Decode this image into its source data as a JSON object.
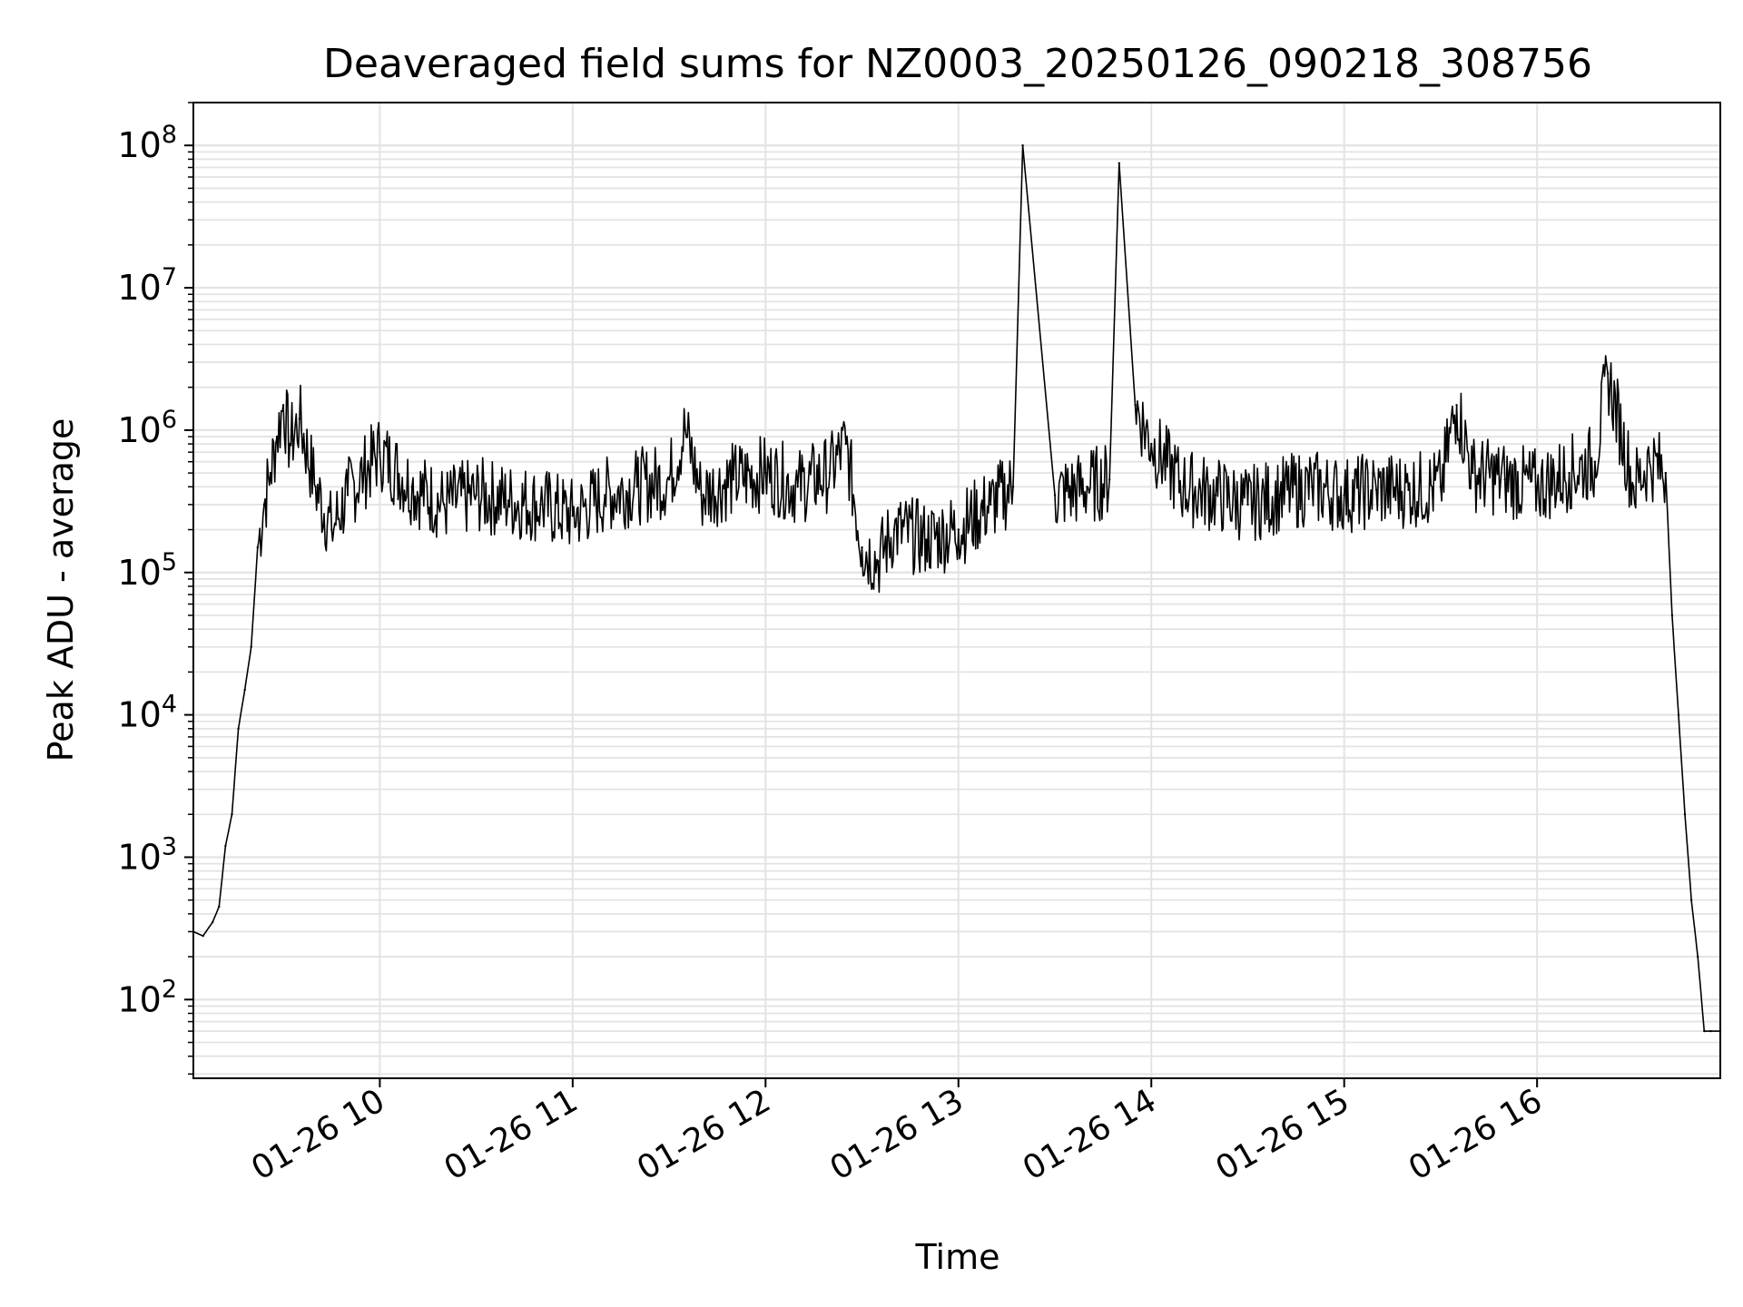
{
  "chart_data": {
    "type": "line",
    "title": "Deaveraged field sums for NZ0003_20250126_090218_308756",
    "xlabel": "Time",
    "ylabel": "Peak ADU - average",
    "y_scale": "log",
    "ylim": [
      28,
      200000000
    ],
    "xlim": [
      "01-26 09:02",
      "01-26 16:57"
    ],
    "grid": "on",
    "x_ticks": [
      "01-26 10",
      "01-26 11",
      "01-26 12",
      "01-26 13",
      "01-26 14",
      "01-26 15",
      "01-26 16"
    ],
    "y_ticks": [
      {
        "base": "10",
        "exp": "2"
      },
      {
        "base": "10",
        "exp": "3"
      },
      {
        "base": "10",
        "exp": "4"
      },
      {
        "base": "10",
        "exp": "5"
      },
      {
        "base": "10",
        "exp": "6"
      },
      {
        "base": "10",
        "exp": "7"
      },
      {
        "base": "10",
        "exp": "8"
      }
    ],
    "line_color": "#000000",
    "series": [
      {
        "x": [
          "01-26 09:02",
          "01-26 09:05",
          "01-26 09:08",
          "01-26 09:10",
          "01-26 09:12",
          "01-26 09:14",
          "01-26 09:16",
          "01-26 09:18",
          "01-26 09:20",
          "01-26 09:22",
          "01-26 09:24",
          "01-26 09:26",
          "01-26 09:28",
          "01-26 09:30",
          "01-26 09:32",
          "01-26 09:35",
          "01-26 09:40",
          "01-26 09:45",
          "01-26 09:50",
          "01-26 09:55",
          "01-26 10:00",
          "01-26 10:10",
          "01-26 10:20",
          "01-26 10:30",
          "01-26 10:40",
          "01-26 10:50",
          "01-26 11:00",
          "01-26 11:10",
          "01-26 11:20",
          "01-26 11:30",
          "01-26 11:35",
          "01-26 11:40",
          "01-26 11:50",
          "01-26 12:00",
          "01-26 12:10",
          "01-26 12:20",
          "01-26 12:25",
          "01-26 12:30",
          "01-26 12:35",
          "01-26 12:40",
          "01-26 12:50",
          "01-26 13:00",
          "01-26 13:10",
          "01-26 13:17",
          "01-26 13:20",
          "01-26 13:30",
          "01-26 13:40",
          "01-26 13:47",
          "01-26 13:50",
          "01-26 13:55",
          "01-26 14:00",
          "01-26 14:10",
          "01-26 14:20",
          "01-26 14:30",
          "01-26 14:40",
          "01-26 14:50",
          "01-26 15:00",
          "01-26 15:10",
          "01-26 15:20",
          "01-26 15:30",
          "01-26 15:35",
          "01-26 15:40",
          "01-26 15:50",
          "01-26 16:00",
          "01-26 16:10",
          "01-26 16:18",
          "01-26 16:22",
          "01-26 16:30",
          "01-26 16:35",
          "01-26 16:40",
          "01-26 16:42",
          "01-26 16:44",
          "01-26 16:46",
          "01-26 16:48",
          "01-26 16:50",
          "01-26 16:52",
          "01-26 16:54",
          "01-26 16:57"
        ],
        "values": [
          300,
          280,
          350,
          450,
          1200,
          2000,
          8000,
          15000,
          30000,
          150000,
          300000,
          500000,
          900000,
          1500000,
          800000,
          1200000,
          400000,
          200000,
          350000,
          500000,
          700000,
          400000,
          300000,
          350000,
          320000,
          300000,
          250000,
          350000,
          400000,
          450000,
          1000000,
          350000,
          450000,
          500000,
          400000,
          500000,
          800000,
          150000,
          120000,
          200000,
          170000,
          200000,
          300000,
          400000,
          100000000,
          350000,
          400000,
          450000,
          75000000,
          1500000,
          800000,
          400000,
          350000,
          300000,
          350000,
          400000,
          350000,
          380000,
          380000,
          400000,
          1500000,
          500000,
          450000,
          400000,
          500000,
          600000,
          2500000,
          400000,
          600000,
          500000,
          50000,
          10000,
          2000,
          500,
          200,
          60,
          60,
          60
        ]
      }
    ]
  }
}
